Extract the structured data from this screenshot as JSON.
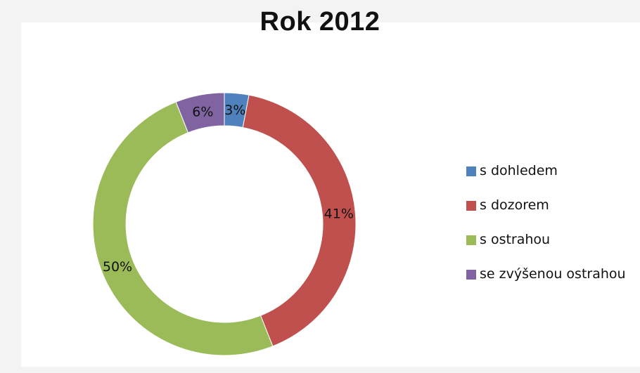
{
  "chart_data": {
    "type": "pie",
    "variant": "doughnut",
    "title": "Rok 2012",
    "categories": [
      "s dohledem",
      "s dozorem",
      "s ostrahou",
      "se zvýšenou ostrahou"
    ],
    "values": [
      3,
      41,
      50,
      6
    ],
    "data_labels": [
      "3%",
      "41%",
      "50%",
      "6%"
    ],
    "colors": [
      "#4f81bd",
      "#c0504d",
      "#9bbb59",
      "#8064a2"
    ],
    "legend_position": "right"
  }
}
